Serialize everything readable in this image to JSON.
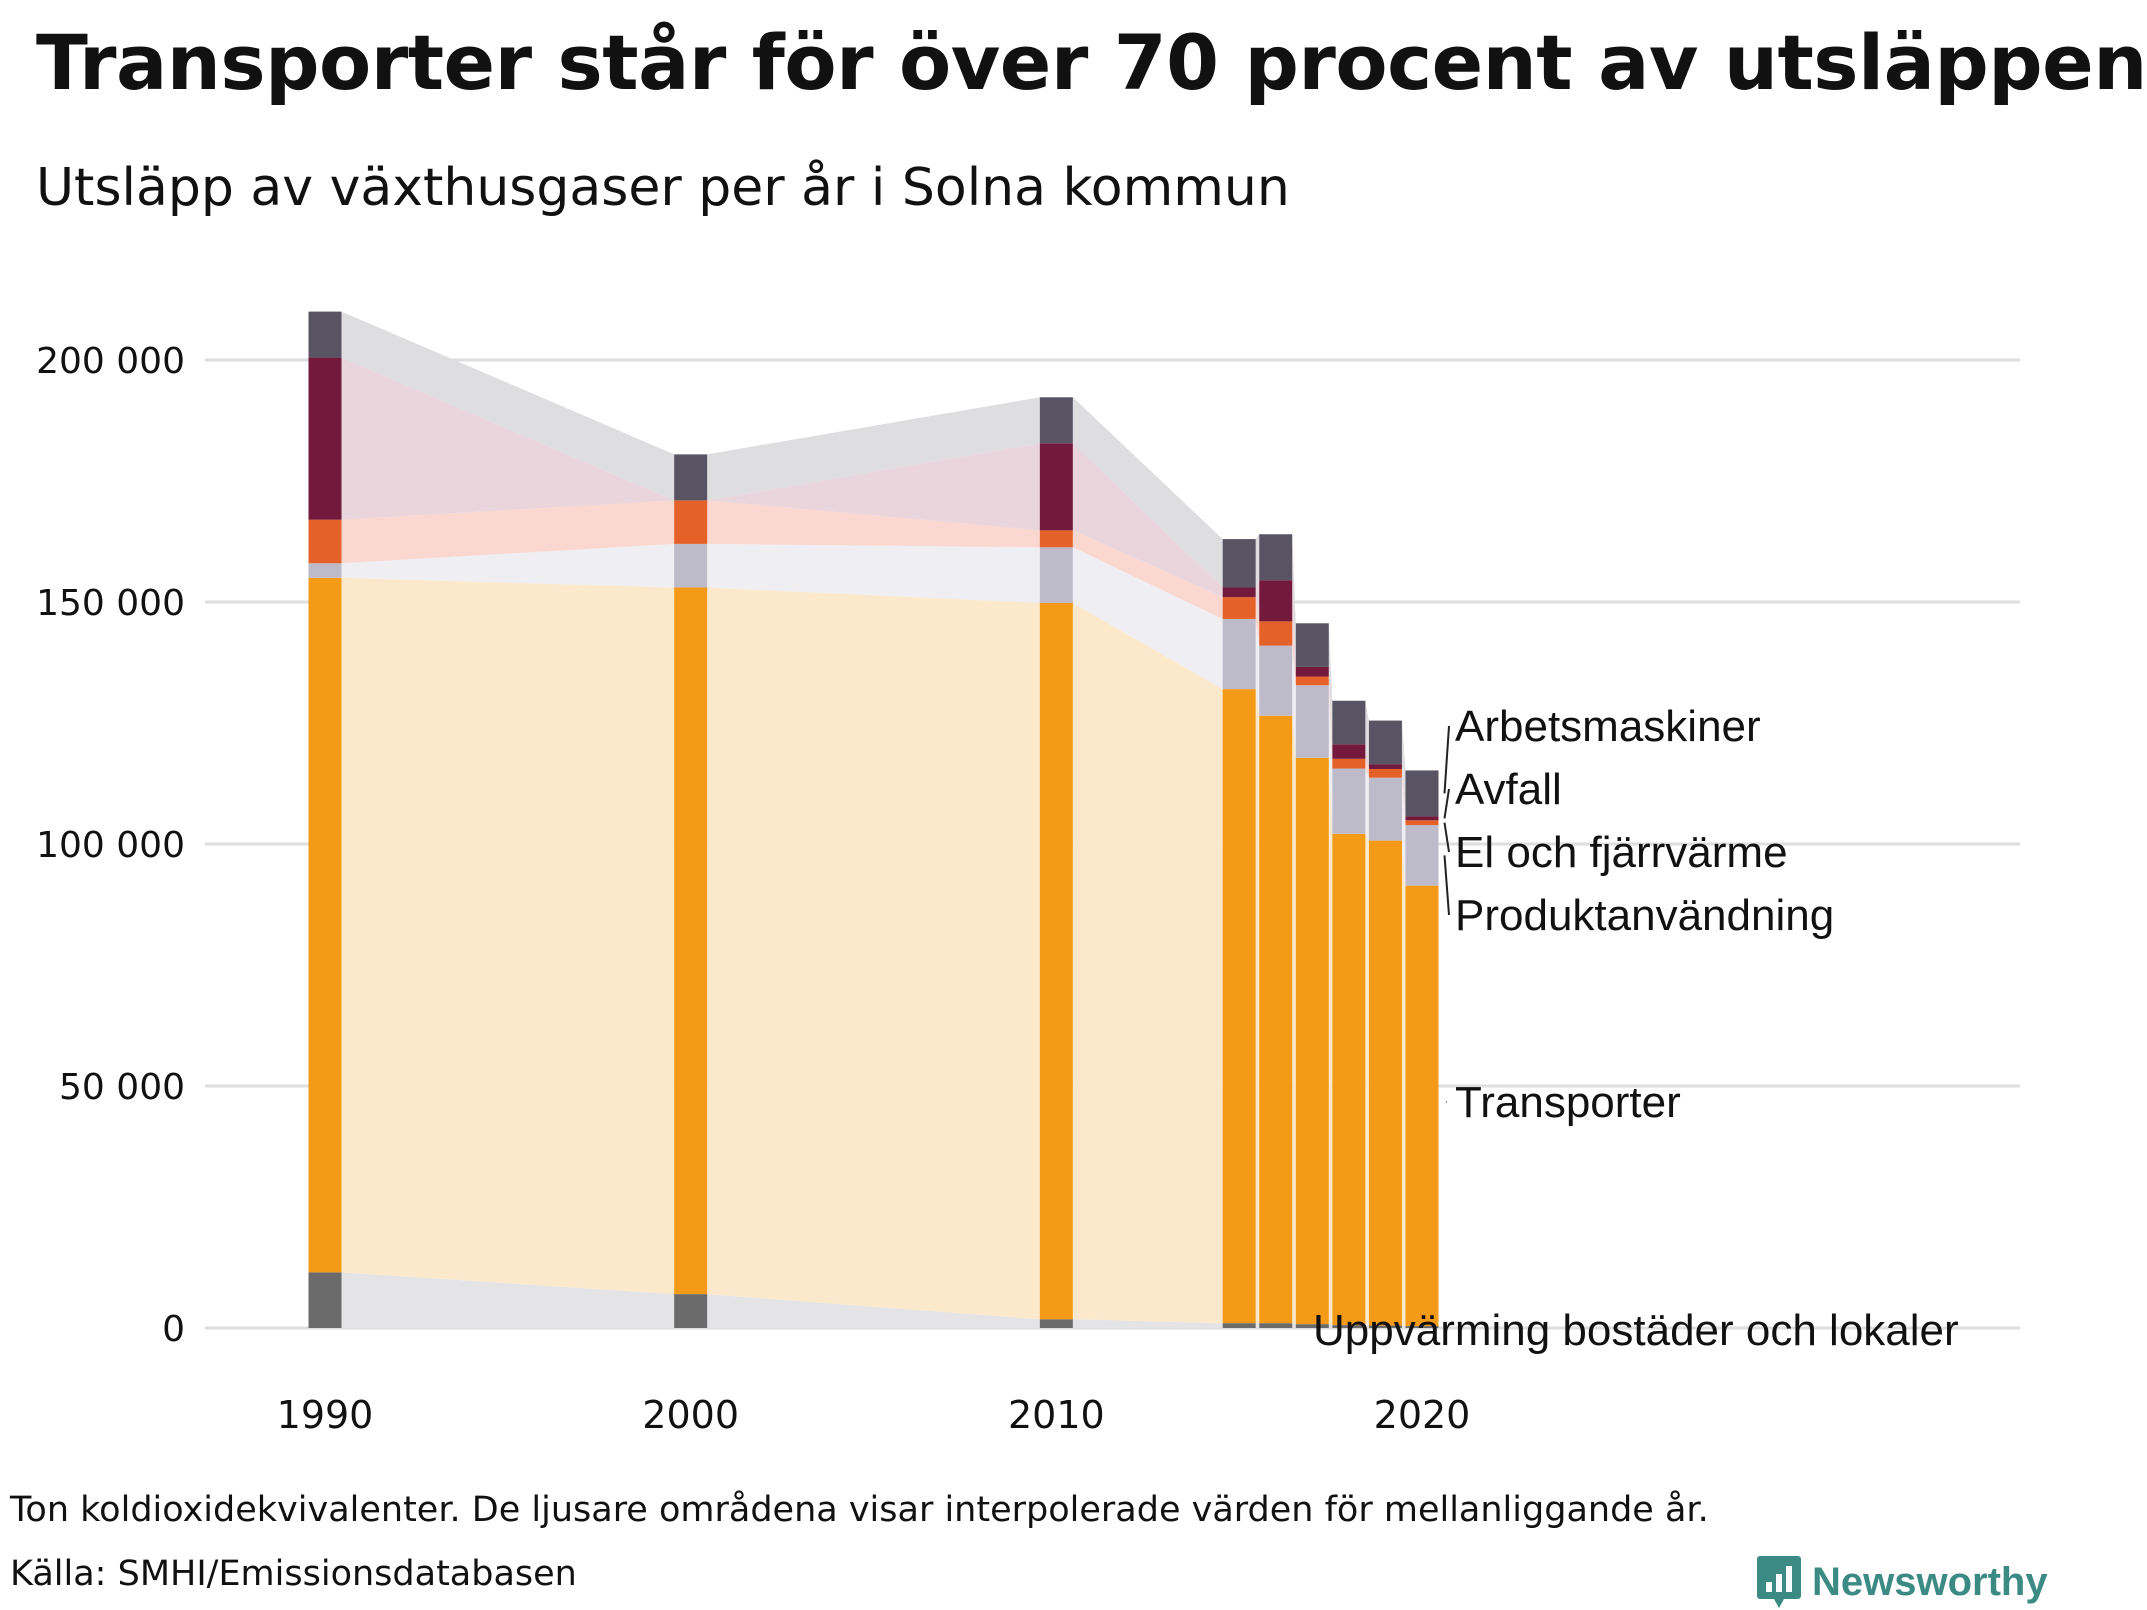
{
  "header": {
    "title": "Transporter står för över 70 procent av utsläppen",
    "subtitle": "Utsläpp av växthusgaser per år i Solna kommun"
  },
  "footer": {
    "note": "Ton koldioxidekvivalenter. De ljusare områdena visar interpolerade värden för mellanliggande år.",
    "source": "Källa: SMHI/Emissionsdatabasen",
    "brand": "Newsworthy",
    "brand_icon": "newsworthy-logo-icon",
    "brand_color": "#3c8a84"
  },
  "chart_data": {
    "type": "bar",
    "stacked": true,
    "title": "Transporter står för över 70 procent av utsläppen",
    "subtitle": "Utsläpp av växthusgaser per år i Solna kommun",
    "unit": "Ton koldioxidekvivalenter",
    "x": [
      1990,
      2000,
      2010,
      2015,
      2016,
      2017,
      2018,
      2019,
      2020
    ],
    "x_ticks": [
      1990,
      2000,
      2010,
      2020
    ],
    "y_ticks": [
      0,
      50000,
      100000,
      150000,
      200000
    ],
    "y_tick_labels": [
      "0",
      "50 000",
      "100 000",
      "150 000",
      "200 000"
    ],
    "ylim": [
      0,
      215000
    ],
    "grid": true,
    "interpolated_areas_between_bars": true,
    "series": [
      {
        "name": "Uppvärming bostäder och lokaler",
        "color": "#6b6b6b",
        "area_color": "#e4e4e6",
        "values": [
          11500,
          7000,
          1800,
          1000,
          1000,
          800,
          600,
          500,
          400
        ]
      },
      {
        "name": "Transporter",
        "color": "#f59a16",
        "area_color": "#fce9cc",
        "values": [
          143500,
          146000,
          148000,
          131000,
          125500,
          117000,
          101500,
          100200,
          91000
        ]
      },
      {
        "name": "Produktanvändning",
        "color": "#bdbac9",
        "area_color": "#efeef2",
        "values": [
          3000,
          9000,
          11500,
          14500,
          14500,
          15000,
          13500,
          13000,
          12500
        ]
      },
      {
        "name": "El och fjärrvärme",
        "color": "#e4622a",
        "area_color": "#fad8d0",
        "values": [
          9000,
          9000,
          3500,
          4500,
          5000,
          1800,
          2000,
          1800,
          1000
        ]
      },
      {
        "name": "Avfall",
        "color": "#731a3c",
        "area_color": "#ead5dc",
        "values": [
          33500,
          0,
          18000,
          2000,
          8500,
          2000,
          3000,
          1000,
          800
        ]
      },
      {
        "name": "Arbetsmaskiner",
        "color": "#595463",
        "area_color": "#dedde0",
        "values": [
          9500,
          9500,
          9500,
          10000,
          9500,
          9000,
          9000,
          9000,
          9500
        ]
      }
    ],
    "legend_labels": [
      "Arbetsmaskiner",
      "Avfall",
      "El och fjärrvärme",
      "Produktanvändning",
      "Transporter",
      "Uppvärming bostäder och lokaler"
    ]
  }
}
